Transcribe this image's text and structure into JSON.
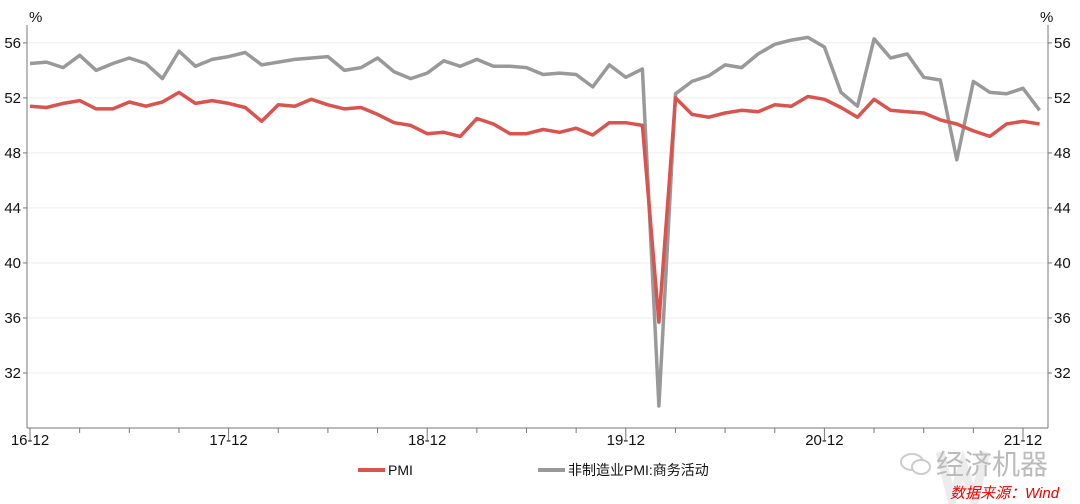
{
  "chart_data": {
    "type": "line",
    "title": "",
    "xlabel": "",
    "ylabel_left": "%",
    "ylabel_right": "%",
    "ylim": [
      28,
      57.3
    ],
    "yticks": [
      32,
      36,
      40,
      44,
      48,
      52,
      56
    ],
    "xtick_labels": [
      "16-12",
      "17-12",
      "18-12",
      "19-12",
      "20-12",
      "21-12"
    ],
    "x_start": "2016-12",
    "x_end": "2022-01",
    "grid": "horizontal",
    "legend_position": "bottom",
    "series": [
      {
        "name": "PMI",
        "color": "#d9534f",
        "values": [
          51.4,
          51.3,
          51.6,
          51.8,
          51.2,
          51.2,
          51.7,
          51.4,
          51.7,
          52.4,
          51.6,
          51.8,
          51.6,
          51.3,
          50.3,
          51.5,
          51.4,
          51.9,
          51.5,
          51.2,
          51.3,
          50.8,
          50.2,
          50.0,
          49.4,
          49.5,
          49.2,
          50.5,
          50.1,
          49.4,
          49.4,
          49.7,
          49.5,
          49.8,
          49.3,
          50.2,
          50.2,
          50.0,
          35.7,
          52.0,
          50.8,
          50.6,
          50.9,
          51.1,
          51.0,
          51.5,
          51.4,
          52.1,
          51.9,
          51.3,
          50.6,
          51.9,
          51.1,
          51.0,
          50.9,
          50.4,
          50.1,
          49.6,
          49.2,
          50.1,
          50.3,
          50.1
        ]
      },
      {
        "name": "非制造业PMI:商务活动",
        "color": "#999999",
        "values": [
          54.5,
          54.6,
          54.2,
          55.1,
          54.0,
          54.5,
          54.9,
          54.5,
          53.4,
          55.4,
          54.3,
          54.8,
          55.0,
          55.3,
          54.4,
          54.6,
          54.8,
          54.9,
          55.0,
          54.0,
          54.2,
          54.9,
          53.9,
          53.4,
          53.8,
          54.7,
          54.3,
          54.8,
          54.3,
          54.3,
          54.2,
          53.7,
          53.8,
          53.7,
          52.8,
          54.4,
          53.5,
          54.1,
          29.6,
          52.3,
          53.2,
          53.6,
          54.4,
          54.2,
          55.2,
          55.9,
          56.2,
          56.4,
          55.7,
          52.4,
          51.4,
          56.3,
          54.9,
          55.2,
          53.5,
          53.3,
          47.5,
          53.2,
          52.4,
          52.3,
          52.7,
          51.1
        ]
      }
    ]
  },
  "watermark": {
    "wechat_name": "经济机器",
    "brand": "Wind",
    "source_label": "数据来源：Wind"
  }
}
